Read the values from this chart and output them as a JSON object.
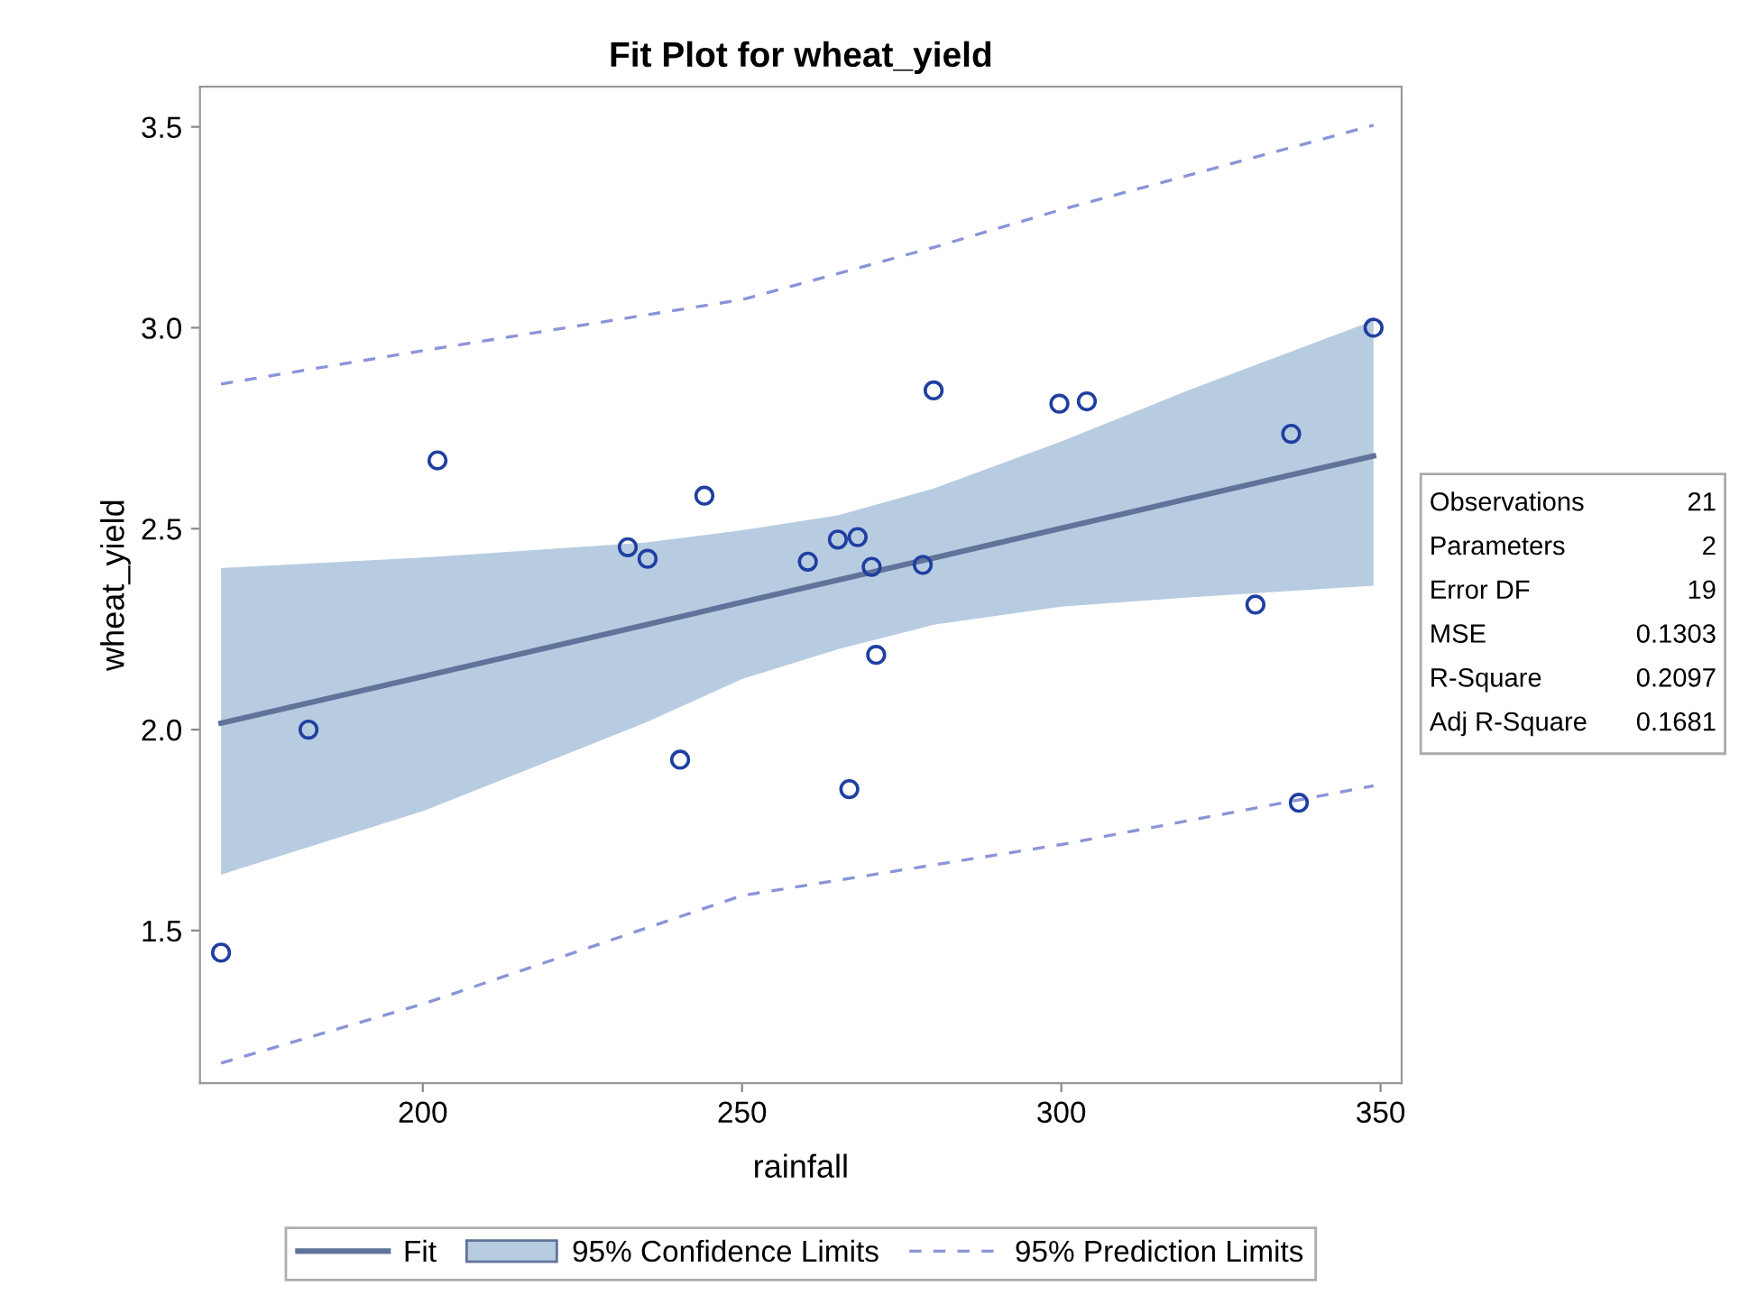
{
  "chart_data": {
    "type": "scatter",
    "title": "Fit Plot for wheat_yield",
    "xlabel": "rainfall",
    "ylabel": "wheat_yield",
    "xlim": [
      165.1,
      353.3
    ],
    "ylim": [
      1.12,
      3.6
    ],
    "xticks": [
      200,
      250,
      300,
      350
    ],
    "yticks": [
      1.5,
      {
        "value": 2,
        "label": "2.0"
      },
      2.5,
      {
        "value": 3,
        "label": "3.0"
      },
      3.5
    ],
    "grid": false,
    "legend": "bottom",
    "series": [
      {
        "type": "line",
        "name": "Fit",
        "color": "#60739a",
        "line_style": "solid",
        "x": [
          168.4,
          200,
          235,
          250,
          265,
          280,
          300,
          320,
          335,
          348.9
        ],
        "values": [
          2.016,
          2.132,
          2.261,
          2.317,
          2.372,
          2.427,
          2.501,
          2.575,
          2.63,
          2.681
        ],
        "upper": [
          2.402,
          2.428,
          2.466,
          2.496,
          2.533,
          2.6,
          2.717,
          2.845,
          2.935,
          3.018
        ],
        "lower": [
          1.639,
          1.797,
          2.018,
          2.126,
          2.2,
          2.261,
          2.306,
          2.329,
          2.344,
          2.358
        ]
      },
      {
        "type": "line",
        "name": "95% Prediction Limits",
        "color": "#8a94d8",
        "line_style": "dashed",
        "x": [
          168.4,
          200,
          250,
          280,
          300,
          348.9
        ],
        "values": [
          2.86,
          2.943,
          3.07,
          3.2,
          3.294,
          3.504
        ]
      },
      {
        "type": "line",
        "color": "#8a94d8",
        "line_style": "dashed",
        "x": [
          168.4,
          200,
          250,
          300,
          348.9
        ],
        "values": [
          1.17,
          1.317,
          1.587,
          1.714,
          1.86
        ]
      },
      {
        "type": "scatter",
        "color": "#1f3fa0",
        "marker": "circle",
        "x": [
          168.4,
          182.1,
          202.3,
          232.1,
          235.2,
          240.3,
          244.1,
          260.3,
          265.0,
          268.1,
          266.8,
          270.3,
          271.0,
          278.3,
          280.0,
          299.7,
          304.0,
          330.4,
          336.0,
          337.2,
          348.9
        ],
        "values": [
          1.445,
          2.0,
          2.67,
          2.454,
          2.425,
          1.925,
          2.582,
          2.418,
          2.473,
          2.479,
          1.852,
          2.405,
          2.186,
          2.41,
          2.844,
          2.811,
          2.817,
          2.311,
          2.736,
          1.818,
          3.0
        ]
      }
    ],
    "annotations": [
      "95% Confidence Limits",
      "Observations",
      "21",
      "Parameters",
      "2",
      "Error DF",
      "19",
      "MSE",
      "0.1303",
      "R-Square",
      "0.2097",
      "Adj R-Square",
      "0.1681"
    ]
  }
}
